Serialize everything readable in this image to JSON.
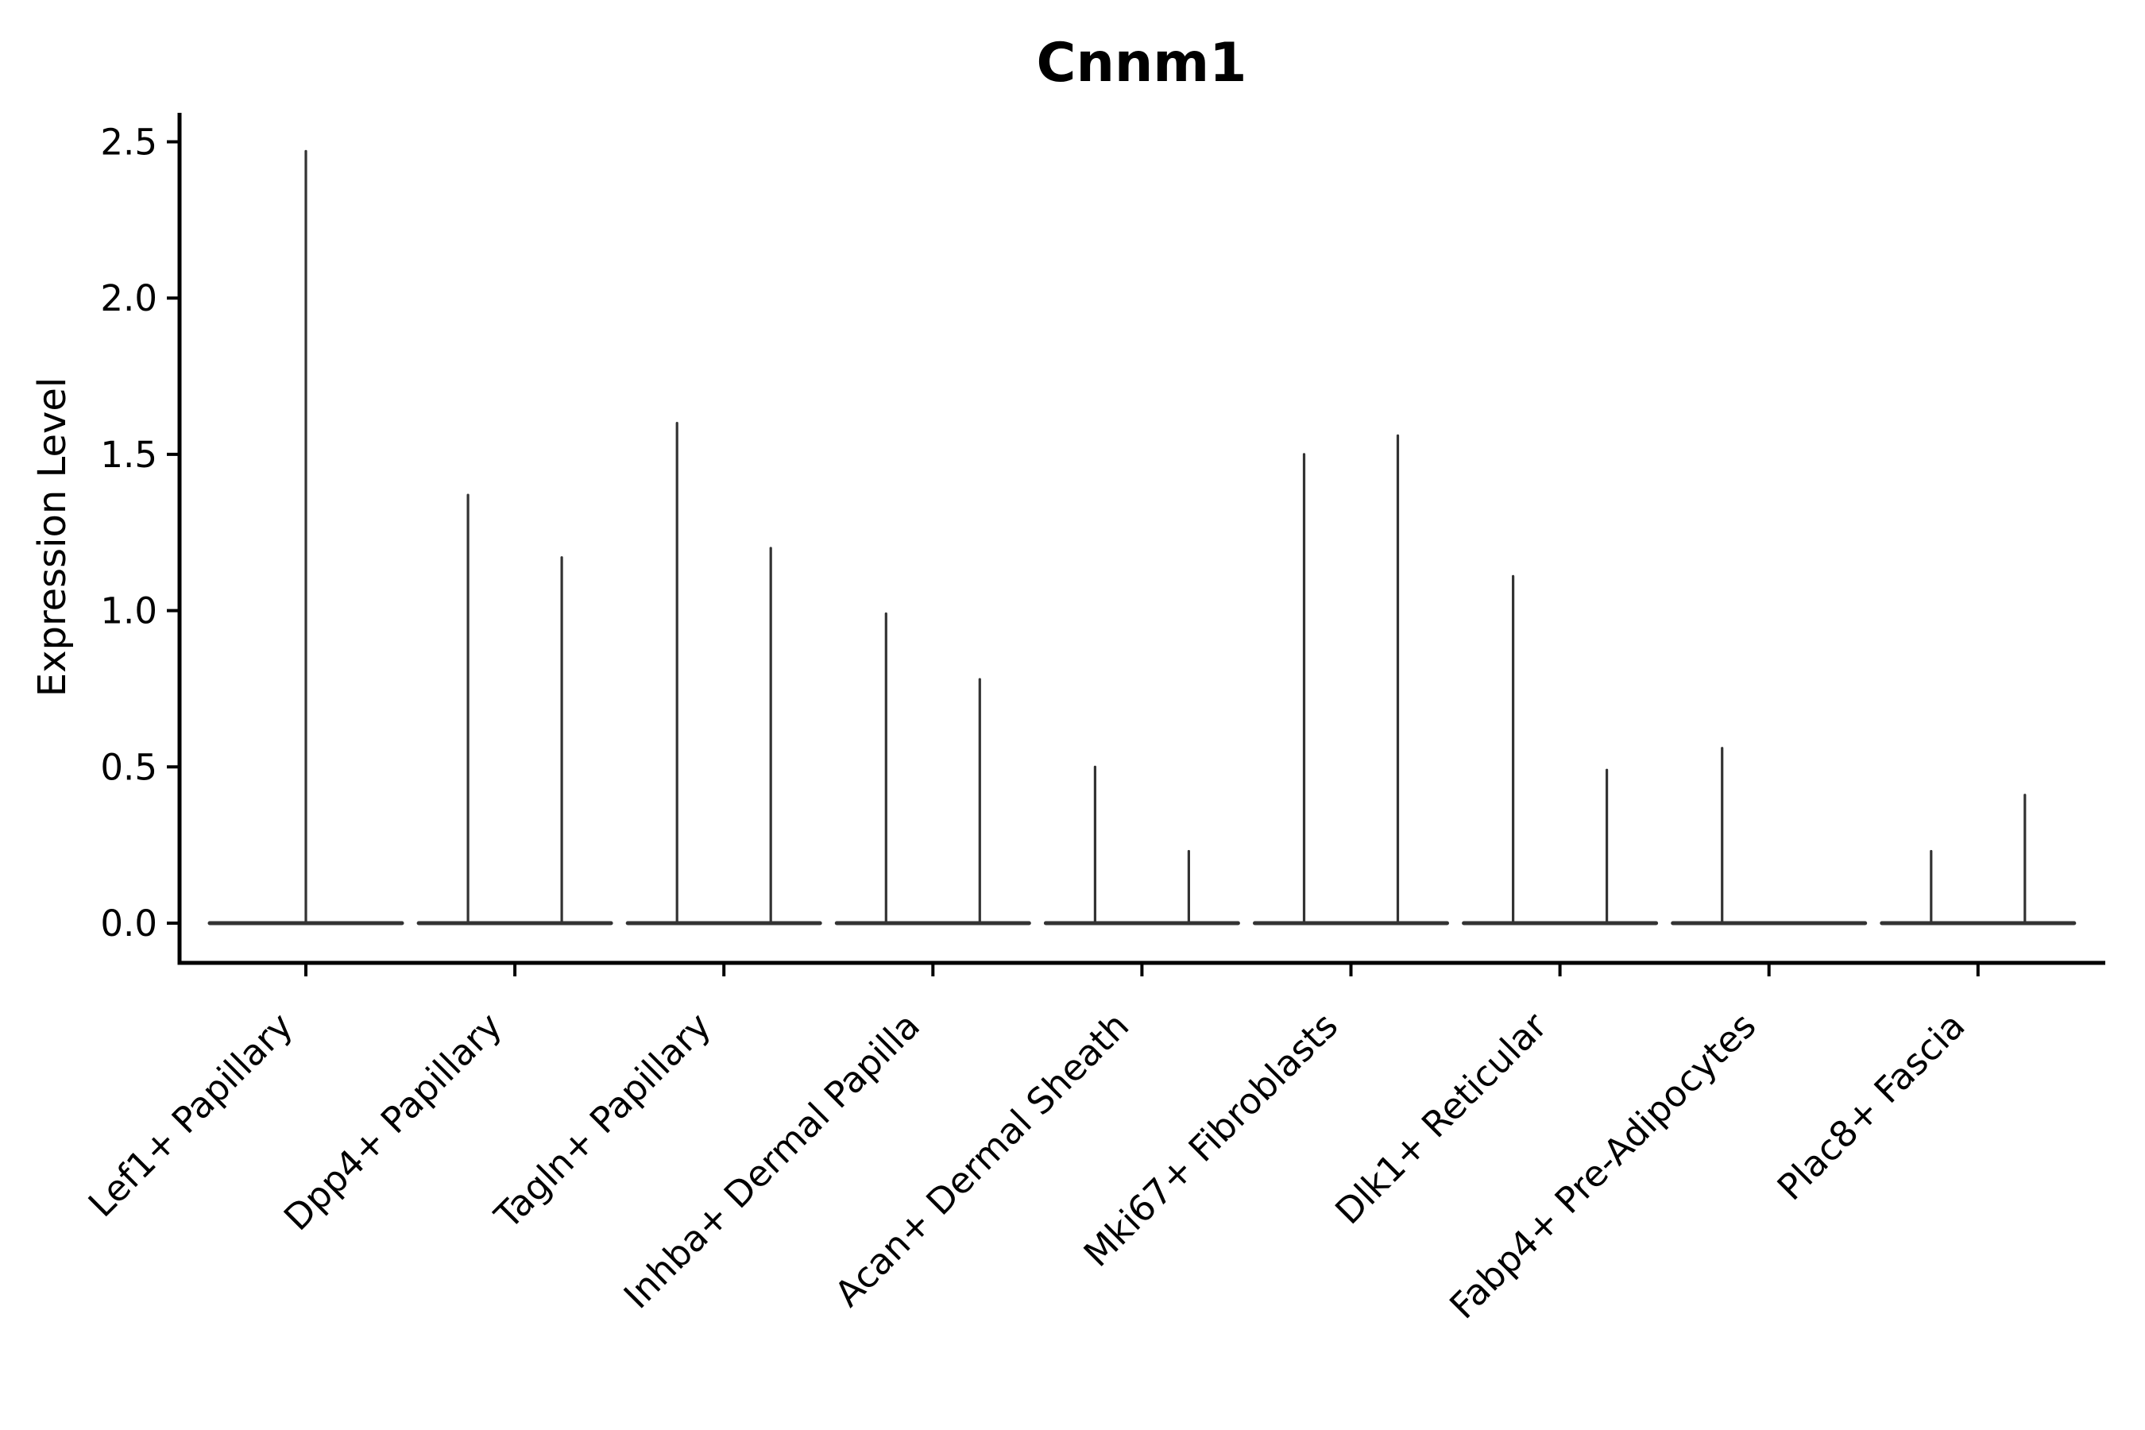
{
  "chart_data": {
    "type": "violin",
    "title": "Cnnm1",
    "xlabel": "",
    "ylabel": "Expression Level",
    "ylim": [
      -0.12,
      2.59
    ],
    "yticks": [
      "0.0",
      "0.5",
      "1.0",
      "1.5",
      "2.0",
      "2.5"
    ],
    "grid": false,
    "legend": "none",
    "description": "Single-cell expression violin plot; each violin collapses to a flat line at 0 with a thin density spike up to the maximum expression value.",
    "categories": [
      "Lef1+ Papillary",
      "Dpp4+ Papillary",
      "Tagln+ Papillary",
      "Inhba+ Dermal Papilla",
      "Acan+ Dermal Sheath",
      "Mki67+ Fibroblasts",
      "Dlk1+ Reticular",
      "Fabp4+ Pre-Adipocytes",
      "Plac8+ Fascia"
    ],
    "violins": [
      {
        "category": "Lef1+ Papillary",
        "spike_maxima": [
          2.47
        ]
      },
      {
        "category": "Dpp4+ Papillary",
        "spike_maxima": [
          1.37,
          1.17
        ]
      },
      {
        "category": "Tagln+ Papillary",
        "spike_maxima": [
          1.6,
          1.2
        ]
      },
      {
        "category": "Inhba+ Dermal Papilla",
        "spike_maxima": [
          0.99,
          0.78
        ]
      },
      {
        "category": "Acan+ Dermal Sheath",
        "spike_maxima": [
          0.5,
          0.23
        ]
      },
      {
        "category": "Mki67+ Fibroblasts",
        "spike_maxima": [
          1.5,
          1.56
        ]
      },
      {
        "category": "Dlk1+ Reticular",
        "spike_maxima": [
          1.11,
          0.49
        ]
      },
      {
        "category": "Fabp4+ Pre-Adipocytes",
        "spike_maxima": [
          0.56,
          0.0
        ]
      },
      {
        "category": "Plac8+ Fascia",
        "spike_maxima": [
          0.23,
          0.41
        ]
      }
    ],
    "colors": {
      "violin": "#333333",
      "axis": "#000000",
      "text": "#000000",
      "background": "#ffffff"
    }
  }
}
